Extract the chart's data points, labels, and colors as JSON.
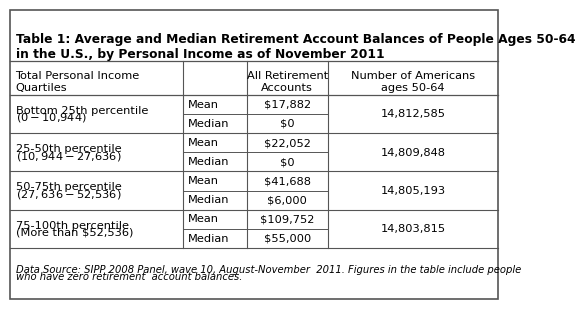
{
  "title": "Table 1: Average and Median Retirement Account Balances of People Ages 50-64\nin the U.S., by Personal Income as of November 2011",
  "rows": [
    {
      "quartile_line1": "Bottom 25th percentile",
      "quartile_line2": "($0-$10,944)",
      "mean_val": "$17,882",
      "median_val": "$0",
      "americans": "14,812,585"
    },
    {
      "quartile_line1": "25-50th percentile",
      "quartile_line2": "($10,944-$27,636)",
      "mean_val": "$22,052",
      "median_val": "$0",
      "americans": "14,809,848"
    },
    {
      "quartile_line1": "50-75th percentile",
      "quartile_line2": "($27,636-$52,536)",
      "mean_val": "$41,688",
      "median_val": "$6,000",
      "americans": "14,805,193"
    },
    {
      "quartile_line1": "75-100th percentile",
      "quartile_line2": "(More than $52,536)",
      "mean_val": "$109,752",
      "median_val": "$55,000",
      "americans": "14,803,815"
    }
  ],
  "footnote_line1": "Data Source: SIPP 2008 Panel, wave 10, August-November  2011. Figures in the table include people",
  "footnote_line2": "who have zero retirement  account balances.",
  "bg_color": "#ffffff",
  "border_color": "#555555",
  "title_fontsize": 8.8,
  "cell_fontsize": 8.2,
  "footnote_fontsize": 7.2
}
